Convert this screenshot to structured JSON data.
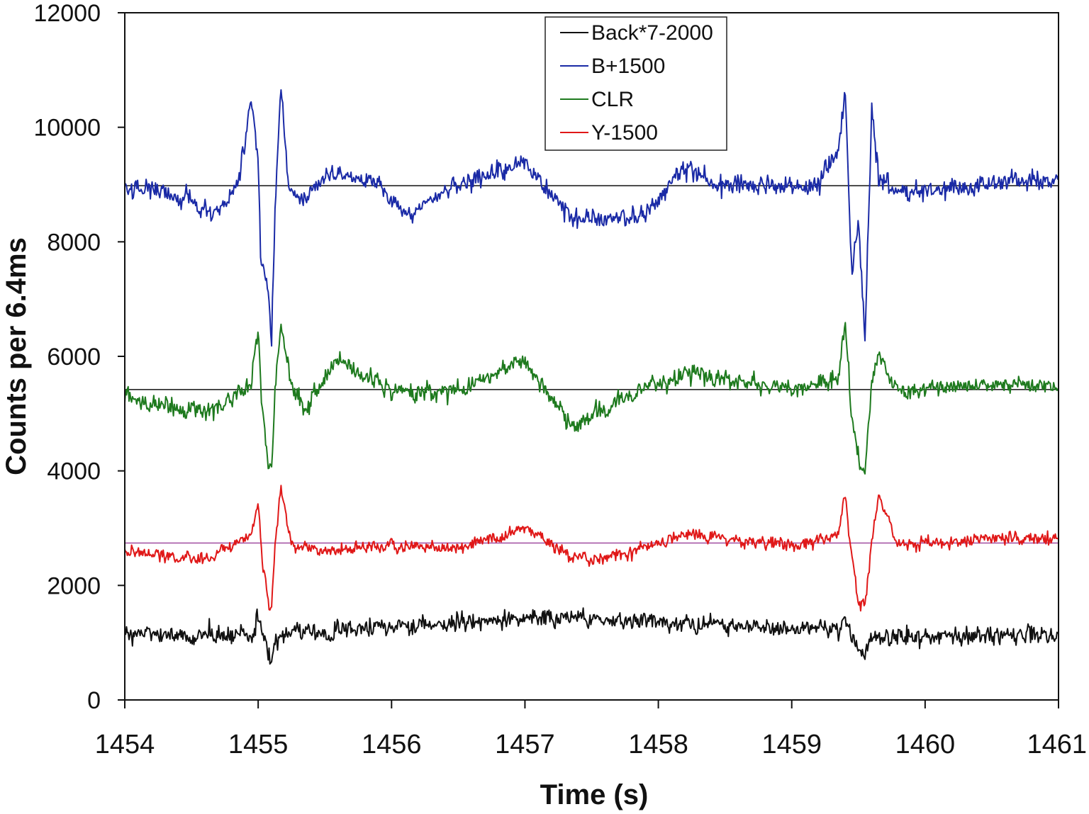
{
  "chart_data": {
    "type": "line",
    "xlabel": "Time (s)",
    "ylabel": "Counts per 6.4ms",
    "xlim": [
      1454,
      1461
    ],
    "ylim": [
      0,
      12000
    ],
    "x_ticks": [
      "1454",
      "1455",
      "1456",
      "1457",
      "1458",
      "1459",
      "1460",
      "1461"
    ],
    "y_ticks": [
      "0",
      "2000",
      "4000",
      "6000",
      "8000",
      "10000",
      "12000"
    ],
    "grid": false,
    "legend": {
      "position": "top-center",
      "entries": [
        {
          "name": "Back*7-2000",
          "color": "#111111"
        },
        {
          "name": "B+1500",
          "color": "#1a2aa6"
        },
        {
          "name": "CLR",
          "color": "#1e7a1e"
        },
        {
          "name": "Y-1500",
          "color": "#e01818"
        }
      ]
    },
    "reference_lines": [
      {
        "y": 8980,
        "color": "#111111"
      },
      {
        "y": 5420,
        "color": "#111111"
      },
      {
        "y": 2740,
        "color": "#a04ca0"
      }
    ],
    "series": [
      {
        "name": "Back*7-2000",
        "color": "#111111",
        "baseline": 1130,
        "noise": 180,
        "x": [
          1454,
          1454.95,
          1455.0,
          1455.05,
          1455.08,
          1455.1,
          1455.13,
          1455.2,
          1457.1,
          1459.35,
          1459.4,
          1459.45,
          1459.5,
          1459.55,
          1459.6,
          1461
        ],
        "values": [
          1130,
          1150,
          1450,
          1050,
          780,
          560,
          1000,
          1150,
          1450,
          1200,
          1500,
          1100,
          880,
          680,
          1100,
          1130
        ]
      },
      {
        "name": "B+1500",
        "color": "#1a2aa6",
        "baseline": 8980,
        "noise": 200,
        "x": [
          1454,
          1454.5,
          1454.65,
          1454.85,
          1454.95,
          1455.0,
          1455.02,
          1455.05,
          1455.08,
          1455.1,
          1455.13,
          1455.17,
          1455.23,
          1455.35,
          1455.5,
          1455.85,
          1456.1,
          1456.5,
          1457.0,
          1457.35,
          1457.6,
          1457.9,
          1458.2,
          1458.5,
          1459.2,
          1459.35,
          1459.4,
          1459.45,
          1459.5,
          1459.55,
          1459.6,
          1459.65,
          1459.75,
          1460.0,
          1460.5,
          1461
        ],
        "values": [
          8950,
          8800,
          8400,
          8950,
          10550,
          9400,
          7600,
          7500,
          7000,
          6150,
          8800,
          10650,
          8900,
          8700,
          9200,
          9100,
          8500,
          9000,
          9400,
          8400,
          8400,
          8450,
          9300,
          8950,
          9000,
          9600,
          10700,
          7500,
          8300,
          6300,
          10300,
          9100,
          8900,
          8900,
          9000,
          9100
        ]
      },
      {
        "name": "CLR",
        "color": "#1e7a1e",
        "baseline": 5420,
        "noise": 190,
        "x": [
          1454,
          1454.6,
          1454.95,
          1455.0,
          1455.03,
          1455.08,
          1455.1,
          1455.13,
          1455.17,
          1455.25,
          1455.35,
          1455.6,
          1456.0,
          1456.5,
          1457.0,
          1457.35,
          1457.6,
          1458.2,
          1459.0,
          1459.35,
          1459.4,
          1459.45,
          1459.5,
          1459.55,
          1459.6,
          1459.65,
          1459.8,
          1460.5,
          1461
        ],
        "values": [
          5300,
          5000,
          5500,
          6500,
          5000,
          4100,
          3950,
          5600,
          6500,
          5500,
          5100,
          5950,
          5400,
          5400,
          5900,
          4800,
          5100,
          5700,
          5400,
          5600,
          6600,
          5000,
          4200,
          3950,
          5600,
          6000,
          5400,
          5500,
          5500
        ]
      },
      {
        "name": "Y-1500",
        "color": "#e01818",
        "baseline": 2740,
        "noise": 130,
        "x": [
          1454,
          1454.6,
          1454.95,
          1455.0,
          1455.03,
          1455.08,
          1455.1,
          1455.13,
          1455.17,
          1455.25,
          1455.5,
          1456.0,
          1456.5,
          1457.0,
          1457.35,
          1457.6,
          1458.2,
          1459.0,
          1459.35,
          1459.4,
          1459.45,
          1459.5,
          1459.55,
          1459.6,
          1459.65,
          1459.8,
          1460.5,
          1461
        ],
        "values": [
          2600,
          2450,
          2900,
          3500,
          2400,
          1700,
          1650,
          2700,
          3750,
          2700,
          2600,
          2700,
          2650,
          3000,
          2500,
          2450,
          2900,
          2700,
          2900,
          3600,
          2500,
          1750,
          1650,
          2700,
          3600,
          2700,
          2800,
          2850
        ]
      }
    ]
  }
}
